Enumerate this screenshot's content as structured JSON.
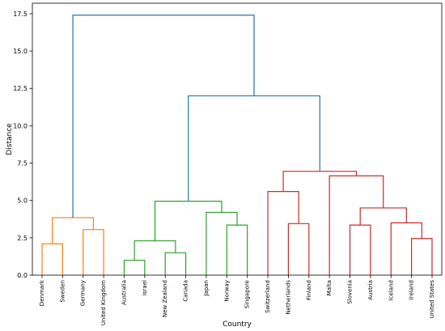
{
  "chart_data": {
    "type": "dendrogram",
    "title": "",
    "xlabel": "Country",
    "ylabel": "Distance",
    "ylim": [
      0,
      18.2
    ],
    "yticks": [
      "0.0",
      "2.5",
      "5.0",
      "7.5",
      "10.0",
      "12.5",
      "15.0",
      "17.5"
    ],
    "grid": false,
    "leaves": [
      "Denmark",
      "Sweden",
      "Germany",
      "United Kingdom",
      "Australia",
      "Israel",
      "New Zealand",
      "Canada",
      "Japan",
      "Norway",
      "Singapore",
      "Switzerland",
      "Netherlands",
      "Finland",
      "Malta",
      "Slovenia",
      "Austria",
      "Iceland",
      "Ireland",
      "United States"
    ],
    "colors": {
      "orange": "#ff7f0e",
      "green": "#2ca02c",
      "red": "#d62728",
      "blue": "#1f77b4"
    },
    "merges": [
      {
        "a": 4,
        "b": 5,
        "height": 1.0,
        "color": "green"
      },
      {
        "a": 6,
        "b": 7,
        "height": 1.5,
        "color": "green"
      },
      {
        "a": 0,
        "b": 1,
        "height": 2.1,
        "color": "orange"
      },
      {
        "a": 20,
        "b": 21,
        "height": 2.3,
        "color": "green"
      },
      {
        "a": 18,
        "b": 19,
        "height": 2.45,
        "color": "red"
      },
      {
        "a": 2,
        "b": 3,
        "height": 3.05,
        "color": "orange"
      },
      {
        "a": 15,
        "b": 16,
        "height": 3.35,
        "color": "red"
      },
      {
        "a": 9,
        "b": 10,
        "height": 3.35,
        "color": "green"
      },
      {
        "a": 12,
        "b": 13,
        "height": 3.45,
        "color": "red"
      },
      {
        "a": 17,
        "b": 24,
        "height": 3.5,
        "color": "red"
      },
      {
        "a": 22,
        "b": 25,
        "height": 3.85,
        "color": "orange"
      },
      {
        "a": 8,
        "b": 27,
        "height": 4.2,
        "color": "green"
      },
      {
        "a": 26,
        "b": 29,
        "height": 4.5,
        "color": "red"
      },
      {
        "a": 23,
        "b": 31,
        "height": 4.95,
        "color": "green"
      },
      {
        "a": 11,
        "b": 28,
        "height": 5.6,
        "color": "red"
      },
      {
        "a": 14,
        "b": 32,
        "height": 6.65,
        "color": "red"
      },
      {
        "a": 34,
        "b": 35,
        "height": 6.95,
        "color": "red"
      },
      {
        "a": 33,
        "b": 36,
        "height": 12.0,
        "color": "blue"
      },
      {
        "a": 30,
        "b": 37,
        "height": 17.4,
        "color": "blue"
      }
    ]
  }
}
